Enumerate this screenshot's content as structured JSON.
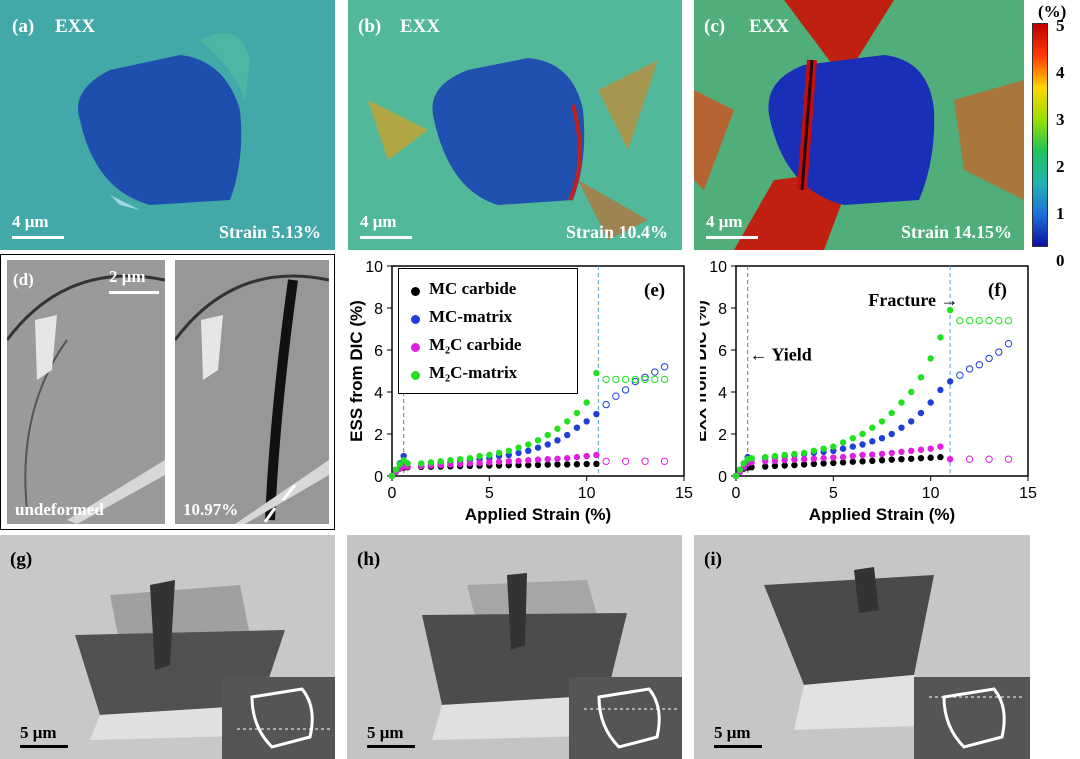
{
  "panels": {
    "a": {
      "label": "(a)",
      "title": "EXX",
      "strain": "Strain 5.13%",
      "scale": "4 μm"
    },
    "b": {
      "label": "(b)",
      "title": "EXX",
      "strain": "Strain 10.4%",
      "scale": "4 μm"
    },
    "c": {
      "label": "(c)",
      "title": "EXX",
      "strain": "Strain 14.15%",
      "scale": "4 μm"
    },
    "d": {
      "label": "(d)",
      "scale": "2 μm",
      "left_caption": "undeformed",
      "right_caption": "10.97%"
    },
    "g": {
      "label": "(g)",
      "scale": "5 μm"
    },
    "h": {
      "label": "(h)",
      "scale": "5 μm"
    },
    "i": {
      "label": "(i)",
      "scale": "5 μm"
    }
  },
  "colorbar": {
    "unit": "(%)",
    "ticks": [
      "5",
      "4",
      "3",
      "2",
      "1",
      "0"
    ],
    "colors": [
      "#c00000",
      "#ff3a00",
      "#ffd400",
      "#9adf00",
      "#20c35a",
      "#20b3b0",
      "#1e6fd8",
      "#0b10a0"
    ]
  },
  "legend": {
    "items": [
      {
        "name": "MC carbide",
        "color": "#000000"
      },
      {
        "name": "MC-matrix",
        "color": "#1f3fd9"
      },
      {
        "name": "M₂C carbide",
        "color": "#e020e0"
      },
      {
        "name": "M₂C-matrix",
        "color": "#20e020"
      }
    ]
  },
  "chart_data": [
    {
      "type": "scatter",
      "panel": "(e)",
      "xlabel": "Applied Strain (%)",
      "ylabel": "ESS from DIC (%)",
      "xlim": [
        0,
        15
      ],
      "ylim": [
        0,
        10
      ],
      "xticks": [
        "0",
        "5",
        "10",
        "15"
      ],
      "yticks": [
        "0",
        "2",
        "4",
        "6",
        "8",
        "10"
      ],
      "vlines": [
        0.6,
        10.6
      ],
      "series": [
        {
          "name": "MC carbide",
          "color": "#000000",
          "x": [
            0,
            0.2,
            0.4,
            0.6,
            0.8,
            1.5,
            2,
            2.5,
            3,
            3.5,
            4,
            4.5,
            5,
            5.5,
            6,
            6.5,
            7,
            7.5,
            8,
            8.5,
            9,
            9.5,
            10,
            10.5,
            11,
            11.5,
            12,
            12.5,
            13,
            13.5,
            14
          ],
          "y": [
            0,
            0.2,
            0.35,
            0.4,
            0.42,
            0.43,
            0.44,
            0.45,
            0.46,
            0.47,
            0.48,
            0.49,
            0.5,
            0.5,
            0.51,
            0.52,
            0.52,
            0.53,
            0.54,
            0.55,
            0.55,
            0.56,
            0.57,
            0.58,
            null,
            null,
            null,
            null,
            null,
            null,
            null
          ]
        },
        {
          "name": "MC-matrix",
          "color": "#1f3fd9",
          "x": [
            0,
            0.2,
            0.4,
            0.6,
            0.8,
            1.5,
            2,
            2.5,
            3,
            3.5,
            4,
            4.5,
            5,
            5.5,
            6,
            6.5,
            7,
            7.5,
            8,
            8.5,
            9,
            9.5,
            10,
            10.5,
            11,
            11.5,
            12,
            12.5,
            13,
            13.5,
            14
          ],
          "y": [
            0,
            0.3,
            0.6,
            0.95,
            0.6,
            0.5,
            0.55,
            0.6,
            0.65,
            0.7,
            0.75,
            0.8,
            0.85,
            0.95,
            1.0,
            1.1,
            1.2,
            1.35,
            1.5,
            1.7,
            1.95,
            2.3,
            2.6,
            2.95,
            3.4,
            3.8,
            4.1,
            4.5,
            4.7,
            4.95,
            5.2
          ]
        },
        {
          "name": "M₂C carbide",
          "color": "#e020e0",
          "x": [
            0,
            0.2,
            0.4,
            0.6,
            0.8,
            1.5,
            2,
            2.5,
            3,
            3.5,
            4,
            4.5,
            5,
            5.5,
            6,
            6.5,
            7,
            7.5,
            8,
            8.5,
            9,
            9.5,
            10,
            10.5,
            11,
            11.5,
            12,
            12.5,
            13,
            13.5,
            14
          ],
          "y": [
            0,
            0.2,
            0.35,
            0.45,
            0.45,
            0.47,
            0.5,
            0.52,
            0.55,
            0.57,
            0.6,
            0.62,
            0.65,
            0.68,
            0.7,
            0.72,
            0.75,
            0.78,
            0.8,
            0.82,
            0.85,
            0.9,
            0.95,
            1.0,
            0.7,
            null,
            0.7,
            null,
            0.7,
            null,
            0.7
          ]
        },
        {
          "name": "M₂C-matrix",
          "color": "#20e020",
          "x": [
            0,
            0.2,
            0.4,
            0.6,
            0.8,
            1.5,
            2,
            2.5,
            3,
            3.5,
            4,
            4.5,
            5,
            5.5,
            6,
            6.5,
            7,
            7.5,
            8,
            8.5,
            9,
            9.5,
            10,
            10.5,
            11,
            11.5,
            12,
            12.5,
            13,
            13.5,
            14
          ],
          "y": [
            0,
            0.3,
            0.55,
            0.75,
            0.6,
            0.6,
            0.65,
            0.7,
            0.75,
            0.8,
            0.85,
            0.95,
            1.0,
            1.1,
            1.2,
            1.35,
            1.5,
            1.7,
            1.95,
            2.25,
            2.6,
            3.0,
            3.5,
            4.9,
            4.6,
            4.6,
            4.6,
            4.6,
            4.6,
            4.6,
            4.6
          ]
        }
      ]
    },
    {
      "type": "scatter",
      "panel": "(f)",
      "xlabel": "Applied Strain (%)",
      "ylabel": "EXX from DIC (%)",
      "xlim": [
        0,
        15
      ],
      "ylim": [
        0,
        10
      ],
      "xticks": [
        "0",
        "5",
        "10",
        "15"
      ],
      "yticks": [
        "0",
        "2",
        "4",
        "6",
        "8",
        "10"
      ],
      "vlines": [
        0.6,
        11.0
      ],
      "annotations": [
        "Fracture",
        "Yield"
      ],
      "series": [
        {
          "name": "MC carbide",
          "color": "#000000",
          "x": [
            0,
            0.2,
            0.4,
            0.6,
            0.8,
            1.5,
            2,
            2.5,
            3,
            3.5,
            4,
            4.5,
            5,
            5.5,
            6,
            6.5,
            7,
            7.5,
            8,
            8.5,
            9,
            9.5,
            10,
            10.5
          ],
          "y": [
            0,
            0.2,
            0.35,
            0.4,
            0.42,
            0.45,
            0.48,
            0.5,
            0.52,
            0.55,
            0.58,
            0.6,
            0.62,
            0.65,
            0.68,
            0.7,
            0.72,
            0.75,
            0.78,
            0.8,
            0.82,
            0.85,
            0.87,
            0.9
          ]
        },
        {
          "name": "MC-matrix",
          "color": "#1f3fd9",
          "x": [
            0,
            0.2,
            0.4,
            0.6,
            0.8,
            1.5,
            2,
            2.5,
            3,
            3.5,
            4,
            4.5,
            5,
            5.5,
            6,
            6.5,
            7,
            7.5,
            8,
            8.5,
            9,
            9.5,
            10,
            10.5,
            11,
            11.5,
            12,
            12.5,
            13,
            13.5,
            14
          ],
          "y": [
            0,
            0.3,
            0.6,
            0.9,
            0.8,
            0.85,
            0.9,
            0.95,
            1.0,
            1.05,
            1.1,
            1.15,
            1.2,
            1.3,
            1.4,
            1.5,
            1.65,
            1.8,
            2.0,
            2.3,
            2.6,
            3.0,
            3.5,
            4.1,
            4.5,
            4.8,
            5.1,
            5.3,
            5.6,
            5.9,
            6.3
          ]
        },
        {
          "name": "M₂C carbide",
          "color": "#e020e0",
          "x": [
            0,
            0.2,
            0.4,
            0.6,
            0.8,
            1.5,
            2,
            2.5,
            3,
            3.5,
            4,
            4.5,
            5,
            5.5,
            6,
            6.5,
            7,
            7.5,
            8,
            8.5,
            9,
            9.5,
            10,
            10.5,
            11,
            12,
            13,
            14
          ],
          "y": [
            0,
            0.2,
            0.4,
            0.6,
            0.65,
            0.7,
            0.72,
            0.75,
            0.78,
            0.8,
            0.82,
            0.85,
            0.88,
            0.9,
            0.95,
            1.0,
            1.02,
            1.05,
            1.1,
            1.15,
            1.2,
            1.25,
            1.3,
            1.4,
            0.8,
            0.8,
            0.8,
            0.8
          ]
        },
        {
          "name": "M₂C-matrix",
          "color": "#20e020",
          "x": [
            0,
            0.2,
            0.4,
            0.6,
            0.8,
            1.5,
            2,
            2.5,
            3,
            3.5,
            4,
            4.5,
            5,
            5.5,
            6,
            6.5,
            7,
            7.5,
            8,
            8.5,
            9,
            9.5,
            10,
            10.5,
            11,
            11.5,
            12,
            12.5,
            13,
            13.5,
            14
          ],
          "y": [
            0,
            0.3,
            0.6,
            0.8,
            0.85,
            0.9,
            0.95,
            1.0,
            1.05,
            1.1,
            1.2,
            1.3,
            1.4,
            1.6,
            1.8,
            2.0,
            2.3,
            2.6,
            3.0,
            3.5,
            4.0,
            4.7,
            5.6,
            6.6,
            7.9,
            7.4,
            7.4,
            7.4,
            7.4,
            7.4,
            7.4
          ]
        }
      ]
    }
  ]
}
